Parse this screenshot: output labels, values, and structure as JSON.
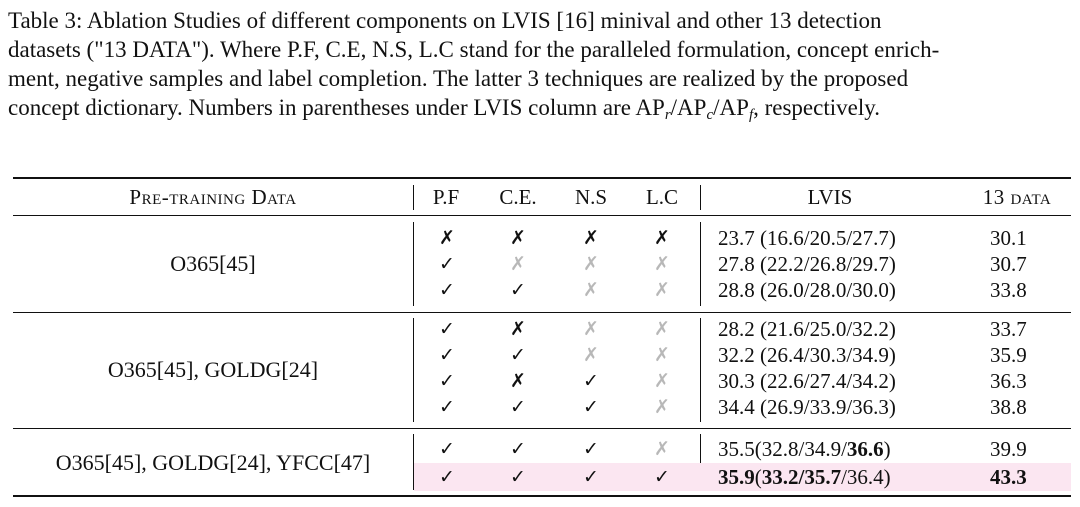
{
  "caption": {
    "line1": "Table 3: Ablation Studies of different components on LVIS [16] minival and other 13 detection",
    "line2": "datasets (\"13 DATA\"). Where P.F, C.E, N.S, L.C stand for the paralleled formulation, concept enrich-",
    "line3": "ment, negative samples and label completion. The latter 3 techniques are realized by the proposed",
    "line4_start": "concept dictionary. Numbers in parentheses under LVIS column are AP",
    "sub_r": "r",
    "slash1": "/AP",
    "sub_c": "c",
    "slash2": "/AP",
    "sub_f": "f",
    "line4_end": ", respectively."
  },
  "headers": {
    "pretraining": "Pre-training Data",
    "pf": "P.F",
    "ce": "C.E.",
    "ns": "N.S",
    "lc": "L.C",
    "lvis": "LVIS",
    "data13": "13 data"
  },
  "groups": [
    {
      "label": "O365[45]",
      "rows": [
        {
          "marks": [
            "✗",
            "✗",
            "✗",
            "✗"
          ],
          "lvis": "23.7 (16.6/20.5/27.7)",
          "data13": "30.1"
        },
        {
          "marks": [
            "✓",
            "✗",
            "✗",
            "✗"
          ],
          "lvis": "27.8 (22.2/26.8/29.7)",
          "data13": "30.7"
        },
        {
          "marks": [
            "✓",
            "✓",
            "✗",
            "✗"
          ],
          "lvis": "28.8 (26.0/28.0/30.0)",
          "data13": "33.8"
        }
      ]
    },
    {
      "label": "O365[45], GOLDG[24]",
      "rows": [
        {
          "marks": [
            "✓",
            "✗",
            "✗",
            "✗"
          ],
          "lvis": "28.2 (21.6/25.0/32.2)",
          "data13": "33.7"
        },
        {
          "marks": [
            "✓",
            "✓",
            "✗",
            "✗"
          ],
          "lvis": "32.2 (26.4/30.3/34.9)",
          "data13": "35.9"
        },
        {
          "marks": [
            "✓",
            "✗",
            "✓",
            "✗"
          ],
          "lvis": "30.3 (22.6/27.4/34.2)",
          "data13": "36.3"
        },
        {
          "marks": [
            "✓",
            "✓",
            "✓",
            "✗"
          ],
          "lvis": "34.4 (26.9/33.9/36.3)",
          "data13": "38.8"
        }
      ]
    },
    {
      "label": "O365[45], GOLDG[24], YFCC[47]",
      "rows": [
        {
          "marks": [
            "✓",
            "✓",
            "✓",
            "✗"
          ],
          "lvis_a": "35.5(32.8/34.9/",
          "lvis_b": "36.6",
          "lvis_c": ")",
          "data13": "39.9"
        },
        {
          "marks": [
            "✓",
            "✓",
            "✓",
            "✓"
          ],
          "lvis_a": "35.9",
          "lvis_b": "(",
          "lvis_c": "33.2/35.7",
          "lvis_d": "/36.4)",
          "data13": "43.3",
          "highlight_color": "#fbe6f1"
        }
      ]
    }
  ]
}
